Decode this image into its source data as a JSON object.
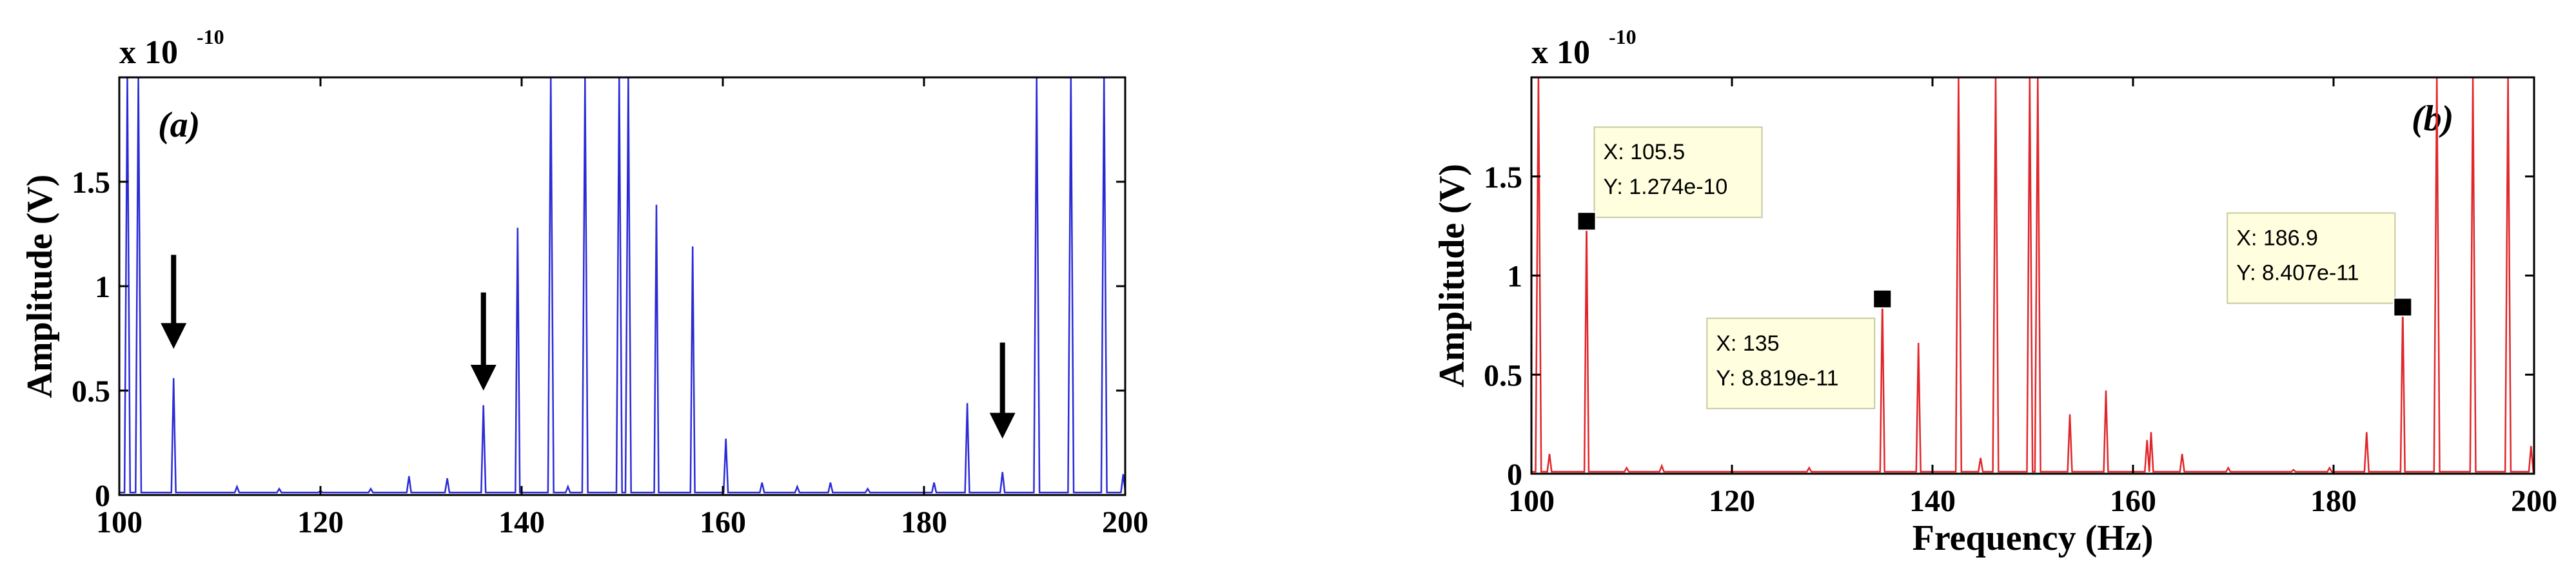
{
  "chart_data": [
    {
      "type": "line",
      "panel_label": "(a)",
      "color": "#2b2bd6",
      "ylabel": "Amplitude (V)",
      "xlabel": "",
      "y_exponent": {
        "base": "x 10",
        "power": "-10"
      },
      "xlim": [
        100,
        200
      ],
      "ylim": [
        0,
        2
      ],
      "xticks": [
        "100",
        "120",
        "140",
        "160",
        "180",
        "200"
      ],
      "yticks": [
        "0",
        "0.5",
        "1",
        "1.5"
      ],
      "baseline": 0.012,
      "peaks": [
        {
          "x": 100.8,
          "y": 2.0
        },
        {
          "x": 101.9,
          "y": 2.0
        },
        {
          "x": 105.4,
          "y": 0.56
        },
        {
          "x": 111.7,
          "y": 0.04
        },
        {
          "x": 115.9,
          "y": 0.03
        },
        {
          "x": 120.0,
          "y": 0.02
        },
        {
          "x": 125.0,
          "y": 0.03
        },
        {
          "x": 128.8,
          "y": 0.09
        },
        {
          "x": 132.6,
          "y": 0.08
        },
        {
          "x": 136.2,
          "y": 0.43
        },
        {
          "x": 139.6,
          "y": 1.28
        },
        {
          "x": 142.9,
          "y": 2.0
        },
        {
          "x": 144.6,
          "y": 0.04
        },
        {
          "x": 146.3,
          "y": 2.0
        },
        {
          "x": 149.7,
          "y": 2.0
        },
        {
          "x": 150.6,
          "y": 2.0
        },
        {
          "x": 153.4,
          "y": 1.39
        },
        {
          "x": 157.0,
          "y": 1.19
        },
        {
          "x": 160.3,
          "y": 0.27
        },
        {
          "x": 163.9,
          "y": 0.06
        },
        {
          "x": 167.4,
          "y": 0.04
        },
        {
          "x": 170.7,
          "y": 0.06
        },
        {
          "x": 174.4,
          "y": 0.03
        },
        {
          "x": 181.0,
          "y": 0.06
        },
        {
          "x": 184.3,
          "y": 0.44
        },
        {
          "x": 187.8,
          "y": 0.11
        },
        {
          "x": 191.2,
          "y": 2.0
        },
        {
          "x": 194.6,
          "y": 2.0
        },
        {
          "x": 197.9,
          "y": 2.0
        },
        {
          "x": 199.8,
          "y": 0.1
        }
      ],
      "arrows": [
        {
          "x": 105.4,
          "y_top": 1.15,
          "y_tip": 0.7
        },
        {
          "x": 136.2,
          "y_top": 0.97,
          "y_tip": 0.5
        },
        {
          "x": 187.8,
          "y_top": 0.73,
          "y_tip": 0.27
        }
      ]
    },
    {
      "type": "line",
      "panel_label": "(b)",
      "color": "#e0262a",
      "ylabel": "Amplitude (V)",
      "xlabel": "Frequency (Hz)",
      "y_exponent": {
        "base": "x 10",
        "power": "-10"
      },
      "xlim": [
        100,
        200
      ],
      "ylim": [
        0,
        2
      ],
      "xticks": [
        "100",
        "120",
        "140",
        "160",
        "180",
        "200"
      ],
      "yticks": [
        "0",
        "0.5",
        "1",
        "1.5"
      ],
      "baseline": 0.01,
      "peaks": [
        {
          "x": 100.7,
          "y": 2.0
        },
        {
          "x": 101.8,
          "y": 0.1
        },
        {
          "x": 105.5,
          "y": 1.274
        },
        {
          "x": 109.5,
          "y": 0.03
        },
        {
          "x": 113.0,
          "y": 0.04
        },
        {
          "x": 127.7,
          "y": 0.03
        },
        {
          "x": 135.0,
          "y": 0.8819
        },
        {
          "x": 138.6,
          "y": 0.66
        },
        {
          "x": 142.6,
          "y": 2.0
        },
        {
          "x": 144.8,
          "y": 0.08
        },
        {
          "x": 146.3,
          "y": 2.0
        },
        {
          "x": 149.7,
          "y": 2.0
        },
        {
          "x": 150.5,
          "y": 2.0
        },
        {
          "x": 153.7,
          "y": 0.3
        },
        {
          "x": 157.3,
          "y": 0.42
        },
        {
          "x": 161.4,
          "y": 0.17
        },
        {
          "x": 161.8,
          "y": 0.21
        },
        {
          "x": 164.9,
          "y": 0.1
        },
        {
          "x": 169.5,
          "y": 0.03
        },
        {
          "x": 176.0,
          "y": 0.02
        },
        {
          "x": 179.6,
          "y": 0.03
        },
        {
          "x": 183.3,
          "y": 0.21
        },
        {
          "x": 186.9,
          "y": 0.8407
        },
        {
          "x": 190.3,
          "y": 2.0
        },
        {
          "x": 193.9,
          "y": 2.0
        },
        {
          "x": 197.4,
          "y": 2.0
        },
        {
          "x": 199.7,
          "y": 0.14
        }
      ],
      "datatips": [
        {
          "x": 105.5,
          "y": 1.274,
          "label_x": "X: 105.5",
          "label_y": "Y: 1.274e-10",
          "anchor": "above-right"
        },
        {
          "x": 135.0,
          "y": 0.8819,
          "label_x": "X: 135",
          "label_y": "Y: 8.819e-11",
          "anchor": "below-left"
        },
        {
          "x": 186.9,
          "y": 0.8407,
          "label_x": "X: 186.9",
          "label_y": "Y: 8.407e-11",
          "anchor": "above-left"
        }
      ]
    }
  ]
}
